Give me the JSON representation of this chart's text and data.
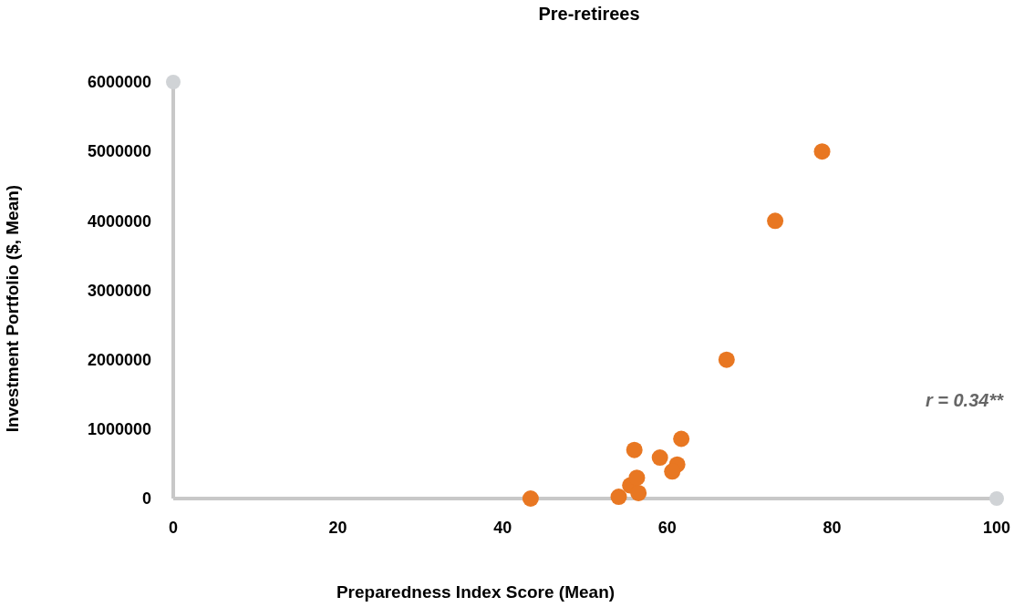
{
  "chart_data": {
    "type": "scatter",
    "title": "Pre-retirees",
    "xlabel": "Preparedness Index Score (Mean)",
    "ylabel": "Investment Portfolio ($, Mean)",
    "x": [
      43.4,
      54.1,
      55.5,
      56.3,
      56.5,
      56.0,
      59.1,
      61.2,
      60.6,
      61.7,
      67.2,
      73.1,
      78.8
    ],
    "values": [
      0,
      25000,
      190000,
      300000,
      80000,
      700000,
      590000,
      490000,
      390000,
      860000,
      2000000,
      4000000,
      5000000
    ],
    "color": "#e87722",
    "marker": "circle",
    "grid": false,
    "xlim": [
      0,
      100
    ],
    "xticks": [
      0,
      20,
      40,
      60,
      80,
      100
    ],
    "ylim": [
      0,
      6000000
    ],
    "yticks": [
      0,
      1000000,
      2000000,
      3000000,
      4000000,
      5000000,
      6000000
    ],
    "annotations": [
      "r = 0.34**"
    ]
  }
}
